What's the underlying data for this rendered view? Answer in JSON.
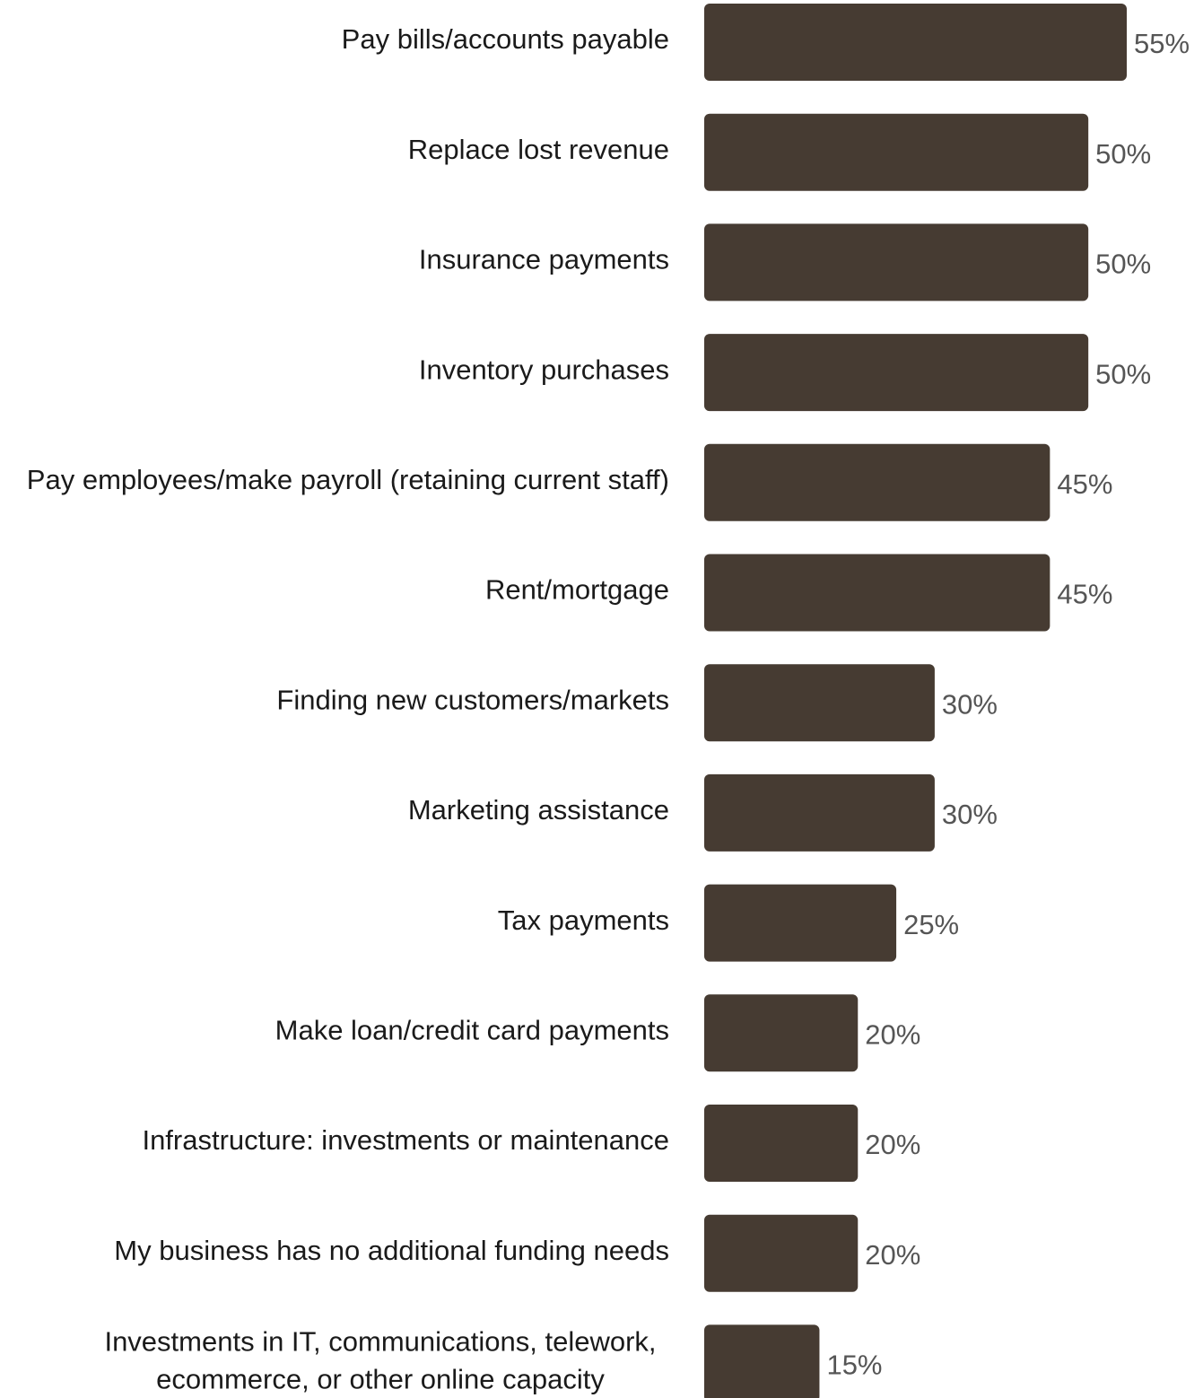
{
  "chart_data": {
    "type": "bar",
    "orientation": "horizontal",
    "title": "",
    "xlabel": "",
    "ylabel": "",
    "value_suffix": "%",
    "xlim": [
      0,
      55
    ],
    "grid": false,
    "legend": "none",
    "bar_color": "#463b32",
    "categories": [
      [
        "Pay bills/accounts payable"
      ],
      [
        "Replace lost revenue"
      ],
      [
        "Insurance payments"
      ],
      [
        "Inventory purchases"
      ],
      [
        "Pay employees/make payroll (retaining current staff)"
      ],
      [
        "Rent/mortgage"
      ],
      [
        "Finding new customers/markets"
      ],
      [
        "Marketing assistance"
      ],
      [
        "Tax payments"
      ],
      [
        "Make loan/credit card payments"
      ],
      [
        "Infrastructure: investments or maintenance"
      ],
      [
        "My business has no additional funding needs"
      ],
      [
        "Investments in IT, communications, telework,",
        "ecommerce, or other online capacity"
      ]
    ],
    "values": [
      55,
      50,
      50,
      50,
      45,
      45,
      30,
      30,
      25,
      20,
      20,
      20,
      15
    ],
    "value_labels": [
      "55%",
      "50%",
      "50%",
      "50%",
      "45%",
      "45%",
      "30%",
      "30%",
      "25%",
      "20%",
      "20%",
      "20%",
      "15%"
    ]
  }
}
